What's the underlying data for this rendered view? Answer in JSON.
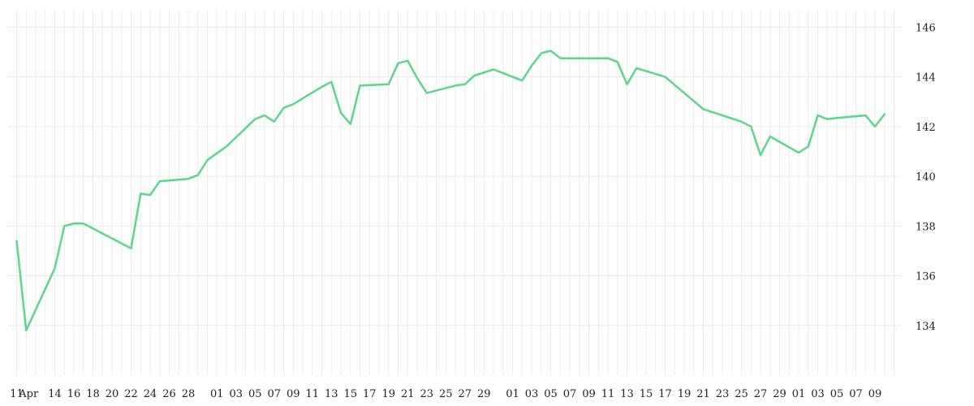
{
  "chart_data": {
    "type": "line",
    "title": "",
    "xlabel": "",
    "ylabel": "",
    "grid": true,
    "legend": "none",
    "line_color": "#5cd68a",
    "grid_color": "#ebebeb",
    "ylim": [
      132,
      146.7
    ],
    "yticks": [
      134,
      136,
      138,
      140,
      142,
      144,
      146
    ],
    "xticks": [
      {
        "i": 0,
        "label": "11"
      },
      {
        "i": 1,
        "label": "Apr"
      },
      {
        "i": 4,
        "label": "14"
      },
      {
        "i": 6,
        "label": "16"
      },
      {
        "i": 8,
        "label": "18"
      },
      {
        "i": 10,
        "label": "20"
      },
      {
        "i": 12,
        "label": "22"
      },
      {
        "i": 14,
        "label": "24"
      },
      {
        "i": 16,
        "label": "26"
      },
      {
        "i": 18,
        "label": "28"
      },
      {
        "i": 21,
        "label": "01"
      },
      {
        "i": 23,
        "label": "03"
      },
      {
        "i": 25,
        "label": "05"
      },
      {
        "i": 27,
        "label": "07"
      },
      {
        "i": 29,
        "label": "09"
      },
      {
        "i": 31,
        "label": "11"
      },
      {
        "i": 33,
        "label": "13"
      },
      {
        "i": 35,
        "label": "15"
      },
      {
        "i": 37,
        "label": "17"
      },
      {
        "i": 39,
        "label": "19"
      },
      {
        "i": 41,
        "label": "21"
      },
      {
        "i": 43,
        "label": "23"
      },
      {
        "i": 45,
        "label": "25"
      },
      {
        "i": 47,
        "label": "27"
      },
      {
        "i": 49,
        "label": "29"
      },
      {
        "i": 52,
        "label": "01"
      },
      {
        "i": 54,
        "label": "03"
      },
      {
        "i": 56,
        "label": "05"
      },
      {
        "i": 58,
        "label": "07"
      },
      {
        "i": 60,
        "label": "09"
      },
      {
        "i": 62,
        "label": "11"
      },
      {
        "i": 64,
        "label": "13"
      },
      {
        "i": 66,
        "label": "15"
      },
      {
        "i": 68,
        "label": "17"
      },
      {
        "i": 70,
        "label": "19"
      },
      {
        "i": 72,
        "label": "21"
      },
      {
        "i": 74,
        "label": "23"
      },
      {
        "i": 76,
        "label": "25"
      },
      {
        "i": 78,
        "label": "27"
      },
      {
        "i": 80,
        "label": "29"
      },
      {
        "i": 82,
        "label": "01"
      },
      {
        "i": 84,
        "label": "03"
      },
      {
        "i": 86,
        "label": "05"
      },
      {
        "i": 88,
        "label": "07"
      },
      {
        "i": 90,
        "label": "09"
      }
    ],
    "grid_count": 93,
    "points": [
      [
        0,
        137.4
      ],
      [
        1,
        133.8
      ],
      [
        4,
        136.3
      ],
      [
        5,
        138.0
      ],
      [
        6,
        138.1
      ],
      [
        7,
        138.1
      ],
      [
        12,
        137.1
      ],
      [
        13,
        139.3
      ],
      [
        14,
        139.25
      ],
      [
        15,
        139.8
      ],
      [
        18,
        139.9
      ],
      [
        19,
        140.05
      ],
      [
        20,
        140.65
      ],
      [
        22,
        141.2
      ],
      [
        25,
        142.3
      ],
      [
        26,
        142.45
      ],
      [
        27,
        142.2
      ],
      [
        28,
        142.75
      ],
      [
        29,
        142.9
      ],
      [
        32,
        143.6
      ],
      [
        33,
        143.8
      ],
      [
        34,
        142.55
      ],
      [
        35,
        142.1
      ],
      [
        36,
        143.65
      ],
      [
        39,
        143.7
      ],
      [
        40,
        144.55
      ],
      [
        41,
        144.65
      ],
      [
        42,
        143.95
      ],
      [
        43,
        143.35
      ],
      [
        46,
        143.65
      ],
      [
        47,
        143.7
      ],
      [
        48,
        144.05
      ],
      [
        50,
        144.3
      ],
      [
        53,
        143.85
      ],
      [
        54,
        144.45
      ],
      [
        55,
        144.95
      ],
      [
        56,
        145.05
      ],
      [
        57,
        144.75
      ],
      [
        62,
        144.75
      ],
      [
        63,
        144.6
      ],
      [
        64,
        143.7
      ],
      [
        65,
        144.35
      ],
      [
        68,
        144.0
      ],
      [
        72,
        142.7
      ],
      [
        76,
        142.2
      ],
      [
        77,
        142.0
      ],
      [
        78,
        140.85
      ],
      [
        79,
        141.6
      ],
      [
        82,
        140.95
      ],
      [
        83,
        141.2
      ],
      [
        84,
        142.45
      ],
      [
        85,
        142.3
      ],
      [
        86,
        142.35
      ],
      [
        89,
        142.45
      ],
      [
        90,
        142.0
      ],
      [
        91,
        142.5
      ]
    ]
  }
}
